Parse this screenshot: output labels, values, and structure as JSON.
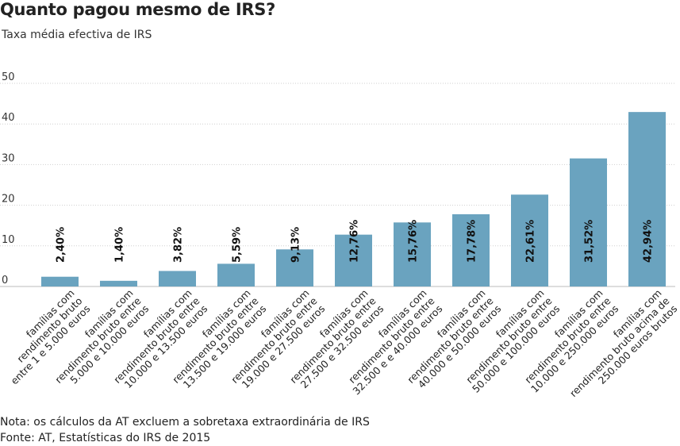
{
  "title": "Quanto pagou mesmo de IRS?",
  "subtitle": "Taxa média efectiva de IRS",
  "chart_data": {
    "type": "bar",
    "title": "Quanto pagou mesmo de IRS?",
    "subtitle": "Taxa média efectiva de IRS",
    "xlabel": "",
    "ylabel": "",
    "ylim": [
      0,
      50
    ],
    "yticks": [
      0,
      10,
      20,
      30,
      40,
      50
    ],
    "grid": true,
    "bar_color": "#6aa3bf",
    "categories": [
      [
        "famílias com",
        "rendimento bruto",
        "entre 1 e 5.000 euros"
      ],
      [
        "famílias com",
        "rendimento bruto entre",
        "5.000 e 10.000 euros"
      ],
      [
        "famílias com",
        "rendimento bruto entre",
        "10.000 e 13.500 euros"
      ],
      [
        "famílias com",
        "rendimento bruto entre",
        "13.500 e  19.000 euros"
      ],
      [
        "famílias com",
        "rendimento bruto entre",
        "19.000 e 27.500 euros"
      ],
      [
        "famílias com",
        "rendimento bruto entre",
        "27.500 e 32.500 euros"
      ],
      [
        "famílias com",
        "rendimento bruto entre",
        "32.500 e e 40.000 euros"
      ],
      [
        "famílias com",
        "rendimento bruto entre",
        "40.000 e 50.000 euros"
      ],
      [
        "famílias com",
        "rendimento bruto entre",
        "50.000 e 100.000 euros"
      ],
      [
        "famílias com",
        "rendimento bruto entre",
        "10.000 e 250.000 euros"
      ],
      [
        "famílias com",
        "rendimento bruto acima de",
        "250.000 euros brutos"
      ]
    ],
    "values": [
      2.4,
      1.4,
      3.82,
      5.59,
      9.13,
      12.76,
      15.76,
      17.78,
      22.61,
      31.52,
      42.94
    ],
    "value_labels": [
      "2,40%",
      "1,40%",
      "3,82%",
      "5,59%",
      "9,13%",
      "12,76%",
      "15,76%",
      "17,78%",
      "22,61%",
      "31,52%",
      "42,94%"
    ]
  },
  "notes": {
    "nota": "Nota: os cálculos da AT excluem a sobretaxa extraordinária de IRS",
    "fonte": "Fonte: AT, Estatísticas do IRS de 2015"
  }
}
